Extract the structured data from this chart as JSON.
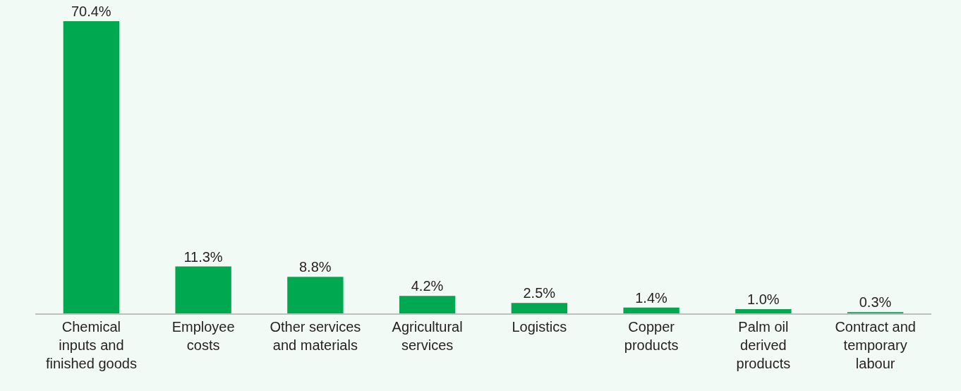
{
  "chart_data": {
    "type": "bar",
    "categories": [
      "Chemical\ninputs and\nfinished goods",
      "Employee\ncosts",
      "Other services\nand materials",
      "Agricultural\nservices",
      "Logistics",
      "Copper\nproducts",
      "Palm oil\nderived\nproducts",
      "Contract and\ntemporary\nlabour"
    ],
    "values": [
      70.4,
      11.3,
      8.8,
      4.2,
      2.5,
      1.4,
      1.0,
      0.3
    ],
    "value_labels": [
      "70.4%",
      "11.3%",
      "8.8%",
      "4.2%",
      "2.5%",
      "1.4%",
      "1.0%",
      "0.3%"
    ],
    "color": "#00a94f"
  }
}
